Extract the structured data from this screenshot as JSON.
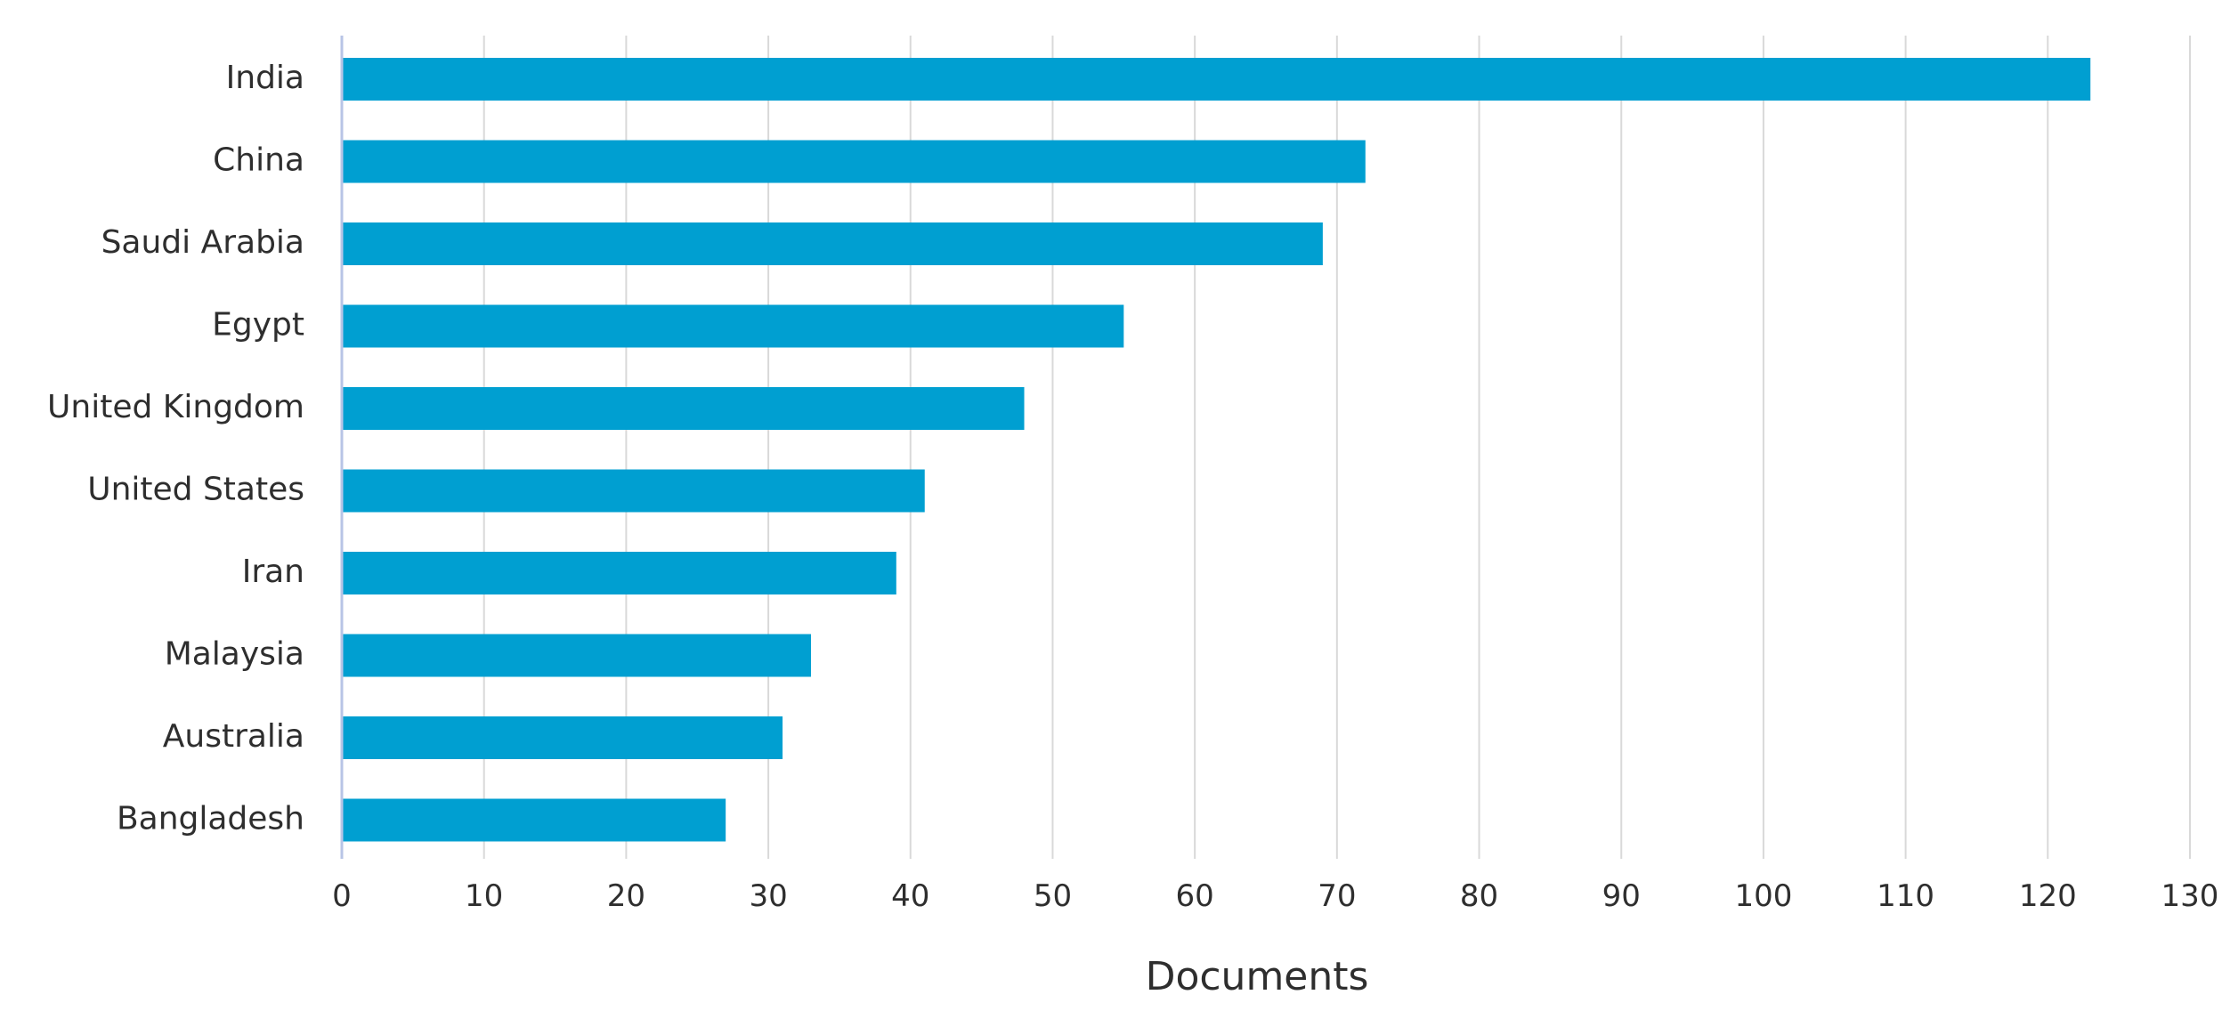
{
  "chart_data": {
    "type": "bar",
    "orientation": "horizontal",
    "title": "",
    "xlabel": "Documents",
    "ylabel": "",
    "categories": [
      "India",
      "China",
      "Saudi Arabia",
      "Egypt",
      "United Kingdom",
      "United States",
      "Iran",
      "Malaysia",
      "Australia",
      "Bangladesh"
    ],
    "series": [
      {
        "values": [
          123,
          72,
          69,
          55,
          48,
          41,
          39,
          33,
          31,
          27
        ]
      }
    ],
    "xlim": [
      0,
      130
    ],
    "xticks": [
      0,
      10,
      20,
      30,
      40,
      50,
      60,
      70,
      80,
      90,
      100,
      110,
      120,
      130
    ],
    "grid": "vertical",
    "legend": "none",
    "bar_color": "#009fd1",
    "grid_color": "#d9d9d9",
    "axis_color": "#b8c4e6",
    "text_color": "#2e2e2e"
  }
}
